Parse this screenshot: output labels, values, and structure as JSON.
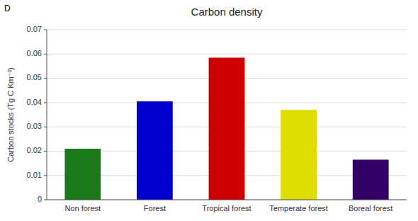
{
  "chart_data": {
    "type": "bar",
    "title": "Carbon density",
    "annotations": [
      "D"
    ],
    "categories": [
      "Non forest",
      "Forest",
      "Tropical forest",
      "Temperate forest",
      "Boreal forest"
    ],
    "values": [
      0.021,
      0.0405,
      0.0585,
      0.037,
      0.0165
    ],
    "colors": [
      "#1a7a1a",
      "#0000cc",
      "#cc0000",
      "#dddd00",
      "#330066"
    ],
    "ylabel": "Carbon stocks (Tg C Km⁻²)",
    "ylim": [
      0,
      0.07
    ],
    "yticks": [
      0,
      0.01,
      0.02,
      0.03,
      0.04,
      0.05,
      0.06,
      0.07
    ],
    "grid": true
  }
}
